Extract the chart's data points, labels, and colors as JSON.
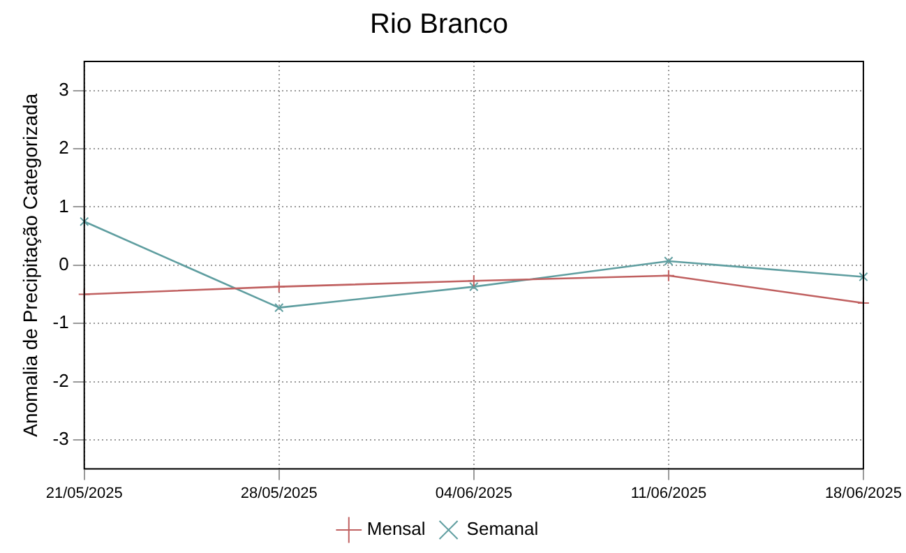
{
  "chart_data": {
    "type": "line",
    "title": "Rio Branco",
    "ylabel": "Anomalia de Precipitação Categorizada",
    "categories": [
      "21/05/2025",
      "28/05/2025",
      "04/06/2025",
      "11/06/2025",
      "18/06/2025"
    ],
    "series": [
      {
        "name": "Mensal",
        "color": "#c06060",
        "values": [
          -0.5,
          -0.37,
          -0.27,
          -0.18,
          -0.65
        ]
      },
      {
        "name": "Semanal",
        "color": "#5f9ea0",
        "values": [
          0.75,
          -0.73,
          -0.37,
          0.07,
          -0.2
        ]
      }
    ],
    "ylim": [
      -3.5,
      3.5
    ],
    "yticks": [
      -3,
      -2,
      -1,
      0,
      1,
      2,
      3
    ],
    "grid": true,
    "legend": "bottom",
    "marker": "cross",
    "line_style": "solid"
  }
}
